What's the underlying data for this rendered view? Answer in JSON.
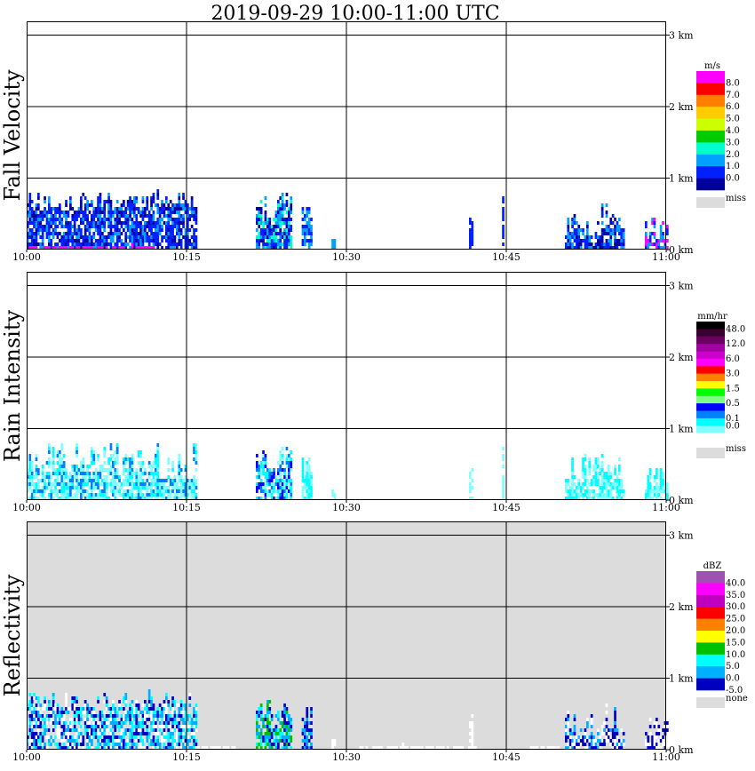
{
  "title": "2019-09-29   10:00-11:00 UTC",
  "colors": {
    "axis": "#000000",
    "missing": "#dcdcdc",
    "background": "#ffffff"
  },
  "chart_data": [
    {
      "type": "heatmap",
      "ylabel": "Fall Velocity",
      "x_ticks": [
        "10:00",
        "10:15",
        "10:30",
        "10:45",
        "11:00"
      ],
      "y_ticks": [
        "0 km",
        "1 km",
        "2 km",
        "3 km"
      ],
      "xlim_minutes": [
        0,
        60
      ],
      "ylim_km": [
        0,
        3.2
      ],
      "grid": true,
      "background": "#ffffff",
      "legend": {
        "unit": "m/s",
        "levels": [
          "8.0",
          "7.0",
          "6.0",
          "5.0",
          "4.0",
          "3.0",
          "2.0",
          "1.0",
          "0.0"
        ],
        "colors": [
          "#ff00ff",
          "#ff0000",
          "#ff7f00",
          "#ffcc00",
          "#ccff00",
          "#00cc00",
          "#00ffcc",
          "#00a0ff",
          "#0020ff",
          "#0000a0"
        ],
        "missing_label": "miss"
      },
      "echo_regions": [
        {
          "t": [
            0.0,
            16.0
          ],
          "top_km": [
            0.55,
            0.85
          ],
          "colors": [
            "#0020ff",
            "#0000a0",
            "#0020ff",
            "#00a0ff"
          ]
        },
        {
          "t": [
            0.2,
            12.0
          ],
          "top_km": [
            0.04,
            0.1
          ],
          "colors": [
            "#ff00ff"
          ]
        },
        {
          "t": [
            21.5,
            24.7
          ],
          "top_km": [
            0.35,
            0.85
          ],
          "colors": [
            "#0020ff",
            "#00a0ff",
            "#0000a0",
            "#00ffcc"
          ]
        },
        {
          "t": [
            25.8,
            26.6
          ],
          "top_km": [
            0.4,
            0.65
          ],
          "colors": [
            "#0020ff",
            "#00a0ff"
          ]
        },
        {
          "t": [
            28.6,
            28.9
          ],
          "top_km": [
            0.15,
            0.2
          ],
          "colors": [
            "#00a0ff"
          ]
        },
        {
          "t": [
            41.5,
            41.7
          ],
          "top_km": [
            0.4,
            0.5
          ],
          "colors": [
            "#0020ff"
          ]
        },
        {
          "t": [
            44.6,
            44.8
          ],
          "top_km": [
            0.75,
            0.8
          ],
          "colors": [
            "#0020ff"
          ]
        },
        {
          "t": [
            50.5,
            56.0
          ],
          "top_km": [
            0.2,
            0.7
          ],
          "colors": [
            "#0020ff",
            "#00a0ff",
            "#0000a0"
          ]
        },
        {
          "t": [
            58.0,
            60.0
          ],
          "top_km": [
            0.15,
            0.5
          ],
          "colors": [
            "#0020ff",
            "#00a0ff",
            "#ff00ff"
          ]
        }
      ]
    },
    {
      "type": "heatmap",
      "ylabel": "Rain Intensity",
      "x_ticks": [
        "10:00",
        "10:15",
        "10:30",
        "10:45",
        "11:00"
      ],
      "y_ticks": [
        "0 km",
        "1 km",
        "2 km",
        "3 km"
      ],
      "xlim_minutes": [
        0,
        60
      ],
      "ylim_km": [
        0,
        3.2
      ],
      "grid": true,
      "background": "#ffffff",
      "legend": {
        "unit": "mm/hr",
        "levels": [
          "48.0",
          "",
          "12.0",
          "",
          "6.0",
          "",
          "3.0",
          "",
          "1.5",
          "",
          "0.5",
          "",
          "0.1",
          "0.0"
        ],
        "colors": [
          "#000000",
          "#3a0030",
          "#6a0060",
          "#a000a0",
          "#cc00cc",
          "#ff00ff",
          "#ff0000",
          "#ff7f00",
          "#ffff00",
          "#00ff00",
          "#80ff80",
          "#0000ff",
          "#0080ff",
          "#00ffff",
          "#80ffff",
          "#ffffff"
        ],
        "missing_label": "miss"
      },
      "echo_regions": [
        {
          "t": [
            0.0,
            16.0
          ],
          "top_km": [
            0.3,
            0.85
          ],
          "colors": [
            "#80ffff",
            "#00ffff",
            "#80ffff",
            "#0080ff"
          ]
        },
        {
          "t": [
            21.5,
            24.7
          ],
          "top_km": [
            0.35,
            0.85
          ],
          "colors": [
            "#80ffff",
            "#00ffff",
            "#0080ff",
            "#0000ff"
          ]
        },
        {
          "t": [
            25.8,
            26.6
          ],
          "top_km": [
            0.4,
            0.65
          ],
          "colors": [
            "#80ffff",
            "#00ffff"
          ]
        },
        {
          "t": [
            28.6,
            28.9
          ],
          "top_km": [
            0.15,
            0.2
          ],
          "colors": [
            "#80ffff"
          ]
        },
        {
          "t": [
            41.5,
            41.7
          ],
          "top_km": [
            0.4,
            0.5
          ],
          "colors": [
            "#80ffff"
          ]
        },
        {
          "t": [
            44.6,
            44.8
          ],
          "top_km": [
            0.75,
            0.8
          ],
          "colors": [
            "#80ffff"
          ]
        },
        {
          "t": [
            50.5,
            56.0
          ],
          "top_km": [
            0.2,
            0.7
          ],
          "colors": [
            "#80ffff",
            "#00ffff"
          ]
        },
        {
          "t": [
            58.0,
            60.0
          ],
          "top_km": [
            0.15,
            0.5
          ],
          "colors": [
            "#80ffff",
            "#00ffff"
          ]
        }
      ]
    },
    {
      "type": "heatmap",
      "ylabel": "Reflectivity",
      "x_ticks": [
        "10:00",
        "10:15",
        "10:30",
        "10:45",
        "11:00"
      ],
      "y_ticks": [
        "0 km",
        "1 km",
        "2 km",
        "3 km"
      ],
      "xlim_minutes": [
        0,
        60
      ],
      "ylim_km": [
        0,
        3.2
      ],
      "grid": true,
      "background": "#dcdcdc",
      "legend": {
        "unit": "dBZ",
        "levels": [
          "40.0",
          "35.0",
          "30.0",
          "25.0",
          "20.0",
          "15.0",
          "10.0",
          "5.0",
          "0.0",
          "-5.0"
        ],
        "colors": [
          "#a050b0",
          "#ff00ff",
          "#c000c0",
          "#ff0000",
          "#ff7f00",
          "#ffff00",
          "#00c000",
          "#00ffff",
          "#00b0ff",
          "#0000c0"
        ],
        "missing_label": "none"
      },
      "echo_regions": [
        {
          "t": [
            0.0,
            16.0
          ],
          "top_km": [
            0.55,
            0.85
          ],
          "colors": [
            "#0000c0",
            "#00b0ff",
            "#00ffff",
            "#ffffff"
          ]
        },
        {
          "t": [
            16.0,
            19.5
          ],
          "top_km": [
            0.05,
            0.1
          ],
          "colors": [
            "#ffffff"
          ]
        },
        {
          "t": [
            21.5,
            24.7
          ],
          "top_km": [
            0.35,
            0.85
          ],
          "colors": [
            "#0000c0",
            "#00b0ff",
            "#00ffff",
            "#00c000"
          ]
        },
        {
          "t": [
            25.8,
            26.6
          ],
          "top_km": [
            0.4,
            0.65
          ],
          "colors": [
            "#0000c0",
            "#00b0ff"
          ]
        },
        {
          "t": [
            28.6,
            28.9
          ],
          "top_km": [
            0.15,
            0.2
          ],
          "colors": [
            "#ffffff"
          ]
        },
        {
          "t": [
            31.0,
            42.0
          ],
          "top_km": [
            0.05,
            0.1
          ],
          "colors": [
            "#ffffff"
          ]
        },
        {
          "t": [
            41.5,
            41.7
          ],
          "top_km": [
            0.4,
            0.5
          ],
          "colors": [
            "#ffffff"
          ]
        },
        {
          "t": [
            47.0,
            50.0
          ],
          "top_km": [
            0.05,
            0.1
          ],
          "colors": [
            "#ffffff"
          ]
        },
        {
          "t": [
            50.5,
            56.0
          ],
          "top_km": [
            0.2,
            0.7
          ],
          "colors": [
            "#0000c0",
            "#00b0ff",
            "#ffffff"
          ]
        },
        {
          "t": [
            58.0,
            60.0
          ],
          "top_km": [
            0.15,
            0.5
          ],
          "colors": [
            "#0000c0",
            "#ffffff"
          ]
        }
      ]
    }
  ]
}
